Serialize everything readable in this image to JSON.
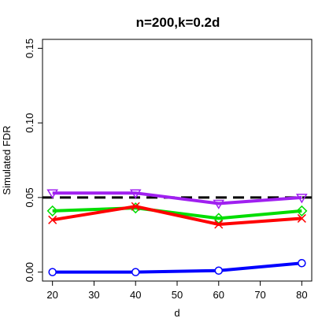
{
  "chart_data": {
    "type": "line",
    "title": "n=200,k=0.2d",
    "xlabel": "d",
    "ylabel": "Simulated FDR",
    "x": [
      20,
      40,
      60,
      80
    ],
    "xlim": [
      17.6,
      82.4
    ],
    "ylim": [
      -0.006,
      0.156
    ],
    "xticks": [
      20,
      30,
      40,
      50,
      60,
      70,
      80
    ],
    "yticks": [
      0.0,
      0.05,
      0.1,
      0.15
    ],
    "xtick_labels": [
      "20",
      "30",
      "40",
      "50",
      "60",
      "70",
      "80"
    ],
    "ytick_labels": [
      "0.00",
      "0.05",
      "0.10",
      "0.15"
    ],
    "reference_line": {
      "y": 0.05,
      "style": "dashed",
      "color": "#000000"
    },
    "series": [
      {
        "color": "#a020f0",
        "marker": "triangle-down",
        "values": [
          0.053,
          0.053,
          0.046,
          0.05
        ]
      },
      {
        "color": "#00dd00",
        "marker": "diamond",
        "values": [
          0.041,
          0.043,
          0.036,
          0.041
        ]
      },
      {
        "color": "#ff0000",
        "marker": "x",
        "values": [
          0.035,
          0.044,
          0.032,
          0.036
        ]
      },
      {
        "color": "#0000ff",
        "marker": "circle",
        "values": [
          0.0,
          0.0,
          0.001,
          0.006
        ]
      }
    ],
    "grid": false,
    "legend": "none"
  }
}
